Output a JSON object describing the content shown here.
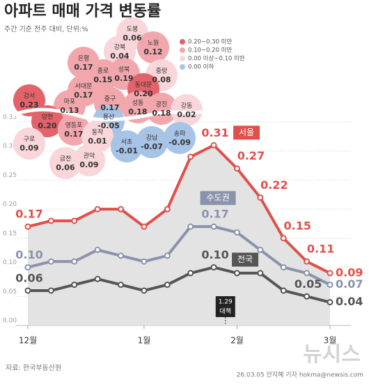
{
  "chart_data": {
    "type": "line",
    "title": "아파트 매매 가격 변동률",
    "subtitle": "주간 기준 전주 대비, 단위:%",
    "categories": [
      "12월",
      null,
      null,
      null,
      null,
      "1월",
      null,
      null,
      null,
      "2월",
      null,
      null,
      null,
      "3월"
    ],
    "series": [
      {
        "name": "서울",
        "color": "#e0504a",
        "values": [
          0.17,
          0.18,
          0.18,
          0.2,
          0.2,
          0.17,
          0.2,
          0.29,
          0.31,
          0.27,
          0.22,
          0.15,
          0.11,
          0.09
        ],
        "value_labels": [
          "0.17",
          null,
          null,
          null,
          null,
          null,
          null,
          null,
          "0.31",
          "0.27",
          "0.22",
          "0.15",
          "0.11",
          "0.09"
        ]
      },
      {
        "name": "수도권",
        "color": "#8a93ab",
        "values": [
          0.1,
          0.11,
          0.11,
          0.13,
          0.12,
          0.11,
          0.12,
          0.17,
          0.17,
          0.16,
          0.13,
          0.1,
          0.09,
          0.07
        ],
        "value_labels": [
          "0.10",
          null,
          null,
          null,
          null,
          null,
          null,
          null,
          "0.17",
          null,
          null,
          null,
          null,
          "0.07"
        ]
      },
      {
        "name": "전국",
        "color": "#555555",
        "values": [
          0.06,
          0.06,
          0.07,
          0.08,
          0.07,
          0.06,
          0.07,
          0.09,
          0.1,
          0.09,
          0.09,
          0.06,
          0.05,
          0.04
        ],
        "value_labels": [
          "0.06",
          null,
          null,
          null,
          null,
          null,
          null,
          null,
          "0.10",
          null,
          null,
          null,
          "0.05",
          "0.04"
        ]
      }
    ],
    "ylim": [
      0,
      0.35
    ],
    "yticks": [
      {
        "value": 0,
        "label": "0.00"
      },
      {
        "value": 0.05,
        "label": "0.05"
      },
      {
        "value": 0.1,
        "label": "0.10"
      },
      {
        "value": 0.15,
        "label": "0.15"
      },
      {
        "value": 0.2,
        "label": "0.20"
      },
      {
        "value": 0.25,
        "label": "0.25"
      },
      {
        "value": 0.3,
        "label": "0.30"
      },
      {
        "value": 0.35,
        "label": "0.35"
      }
    ],
    "grid": true,
    "area_color": "#e3e3e3",
    "annotation": [
      "1.29",
      "대책"
    ],
    "source": "자료: 한국부동산원",
    "credit": "26.03.05 안지혜 기자 hokma@newsis.com",
    "logo": "뉴시스"
  },
  "map": {
    "legend": [
      {
        "label": "0.20~0.30 미만",
        "color": "#e2636a"
      },
      {
        "label": "0.10~0.20 미만",
        "color": "#f2a7ad"
      },
      {
        "label": "0.00 이상~0.10 미만",
        "color": "#f8d6d9"
      },
      {
        "label": "0.00 이하",
        "color": "#a7c3e6"
      }
    ],
    "districts": [
      {
        "name": "도봉",
        "value": "0.06",
        "class": 2
      },
      {
        "name": "노원",
        "value": "0.12",
        "class": 1
      },
      {
        "name": "강북",
        "value": "0.04",
        "class": 2
      },
      {
        "name": "은평",
        "value": "0.17",
        "class": 1
      },
      {
        "name": "종로",
        "value": "0.15",
        "class": 1
      },
      {
        "name": "성북",
        "value": "0.19",
        "class": 1
      },
      {
        "name": "중랑",
        "value": "0.08",
        "class": 2
      },
      {
        "name": "서대문",
        "value": "0.17",
        "class": 1
      },
      {
        "name": "동대문",
        "value": "0.20",
        "class": 0
      },
      {
        "name": "강서",
        "value": "0.23",
        "class": 0
      },
      {
        "name": "마포",
        "value": "0.13",
        "class": 1
      },
      {
        "name": "중구",
        "value": "0.17",
        "class": 1
      },
      {
        "name": "성동",
        "value": "0.18",
        "class": 1
      },
      {
        "name": "광진",
        "value": "0.18",
        "class": 1
      },
      {
        "name": "강동",
        "value": "0.02",
        "class": 2
      },
      {
        "name": "용산",
        "value": "-0.05",
        "class": 3
      },
      {
        "name": "양천",
        "value": "0.20",
        "class": 0
      },
      {
        "name": "영등포",
        "value": "0.17",
        "class": 1
      },
      {
        "name": "동작",
        "value": "0.01",
        "class": 2
      },
      {
        "name": "구로",
        "value": "0.09",
        "class": 2
      },
      {
        "name": "금천",
        "value": "0.06",
        "class": 2
      },
      {
        "name": "관악",
        "value": "0.09",
        "class": 2
      },
      {
        "name": "서초",
        "value": "-0.01",
        "class": 3
      },
      {
        "name": "강남",
        "value": "-0.07",
        "class": 3
      },
      {
        "name": "송파",
        "value": "-0.09",
        "class": 3
      }
    ]
  }
}
